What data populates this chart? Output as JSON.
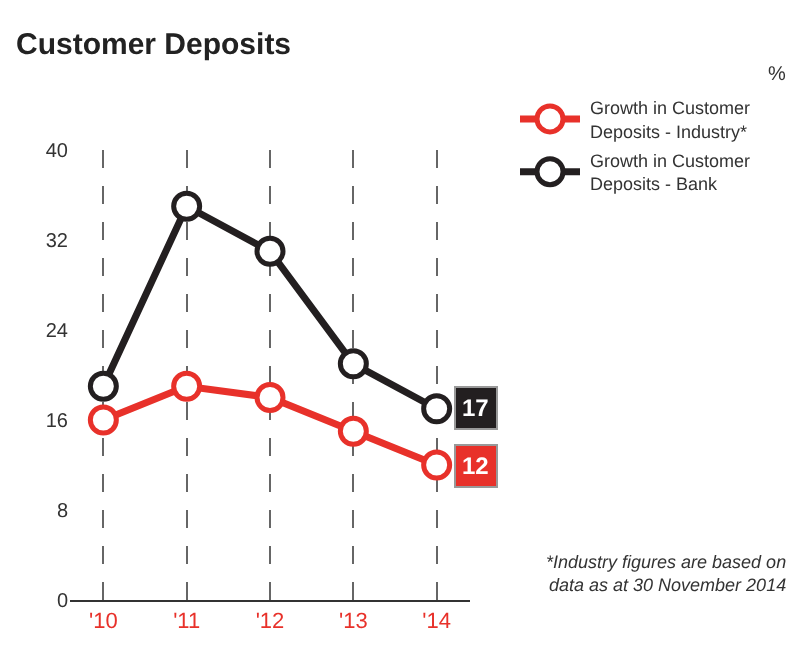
{
  "chart_data": {
    "type": "line",
    "title": "Customer Deposits",
    "categories": [
      "'10",
      "'11",
      "'12",
      "'13",
      "'14"
    ],
    "series": [
      {
        "name": "Growth in Customer Deposits - Industry*",
        "color": "#e8312a",
        "values": [
          16,
          19,
          18,
          15,
          12
        ],
        "value_labels": [
          null,
          null,
          null,
          null,
          "12"
        ]
      },
      {
        "name": "Growth in Customer Deposits - Bank",
        "color": "#231f20",
        "values": [
          19,
          35,
          31,
          21,
          17
        ],
        "value_labels": [
          null,
          null,
          null,
          null,
          "17"
        ]
      }
    ],
    "ylim": [
      0,
      40
    ],
    "yticks": [
      0,
      8,
      16,
      24,
      32,
      40
    ],
    "grid": "x",
    "legend": "top right",
    "marker": "circle",
    "line_style": "solid",
    "annotations": [
      "%",
      "*Industry figures are based on data as at 30 November 2014"
    ]
  }
}
